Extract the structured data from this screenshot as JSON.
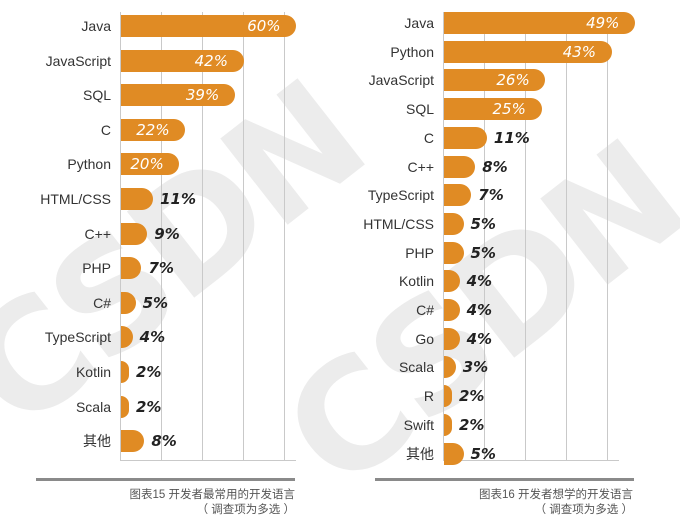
{
  "chart_data": [
    {
      "type": "bar",
      "orientation": "horizontal",
      "title": "图表15 开发者最常用的开发语言",
      "subtitle": "（ 调查项为多选 ）",
      "categories": [
        "Java",
        "JavaScript",
        "SQL",
        "C",
        "Python",
        "HTML/CSS",
        "C++",
        "PHP",
        "C#",
        "TypeScript",
        "Kotlin",
        "Scala",
        "其他"
      ],
      "values": [
        60,
        42,
        39,
        22,
        20,
        11,
        9,
        7,
        5,
        4,
        2,
        2,
        8
      ],
      "labels": [
        "60%",
        "42%",
        "39%",
        "22%",
        "20%",
        "11%",
        "9%",
        "7%",
        "5%",
        "4%",
        "2%",
        "2%",
        "8%"
      ],
      "unit": "%",
      "xlim": [
        0,
        60
      ],
      "grid": true,
      "color": "#e08b24"
    },
    {
      "type": "bar",
      "orientation": "horizontal",
      "title": "图表16 开发者想学的开发语言",
      "subtitle": "（ 调查项为多选 ）",
      "categories": [
        "Java",
        "Python",
        "JavaScript",
        "SQL",
        "C",
        "C++",
        "TypeScript",
        "HTML/CSS",
        "PHP",
        "Kotlin",
        "C#",
        "Go",
        "Scala",
        "R",
        "Swift",
        "其他"
      ],
      "values": [
        49,
        43,
        26,
        25,
        11,
        8,
        7,
        5,
        5,
        4,
        4,
        4,
        3,
        2,
        2,
        5
      ],
      "labels": [
        "49%",
        "43%",
        "26%",
        "25%",
        "11%",
        "8%",
        "7%",
        "5%",
        "5%",
        "4%",
        "4%",
        "4%",
        "3%",
        "2%",
        "2%",
        "5%"
      ],
      "unit": "%",
      "xlim": [
        0,
        50
      ],
      "grid": true,
      "color": "#e08b24"
    }
  ],
  "watermark": "CSDN"
}
